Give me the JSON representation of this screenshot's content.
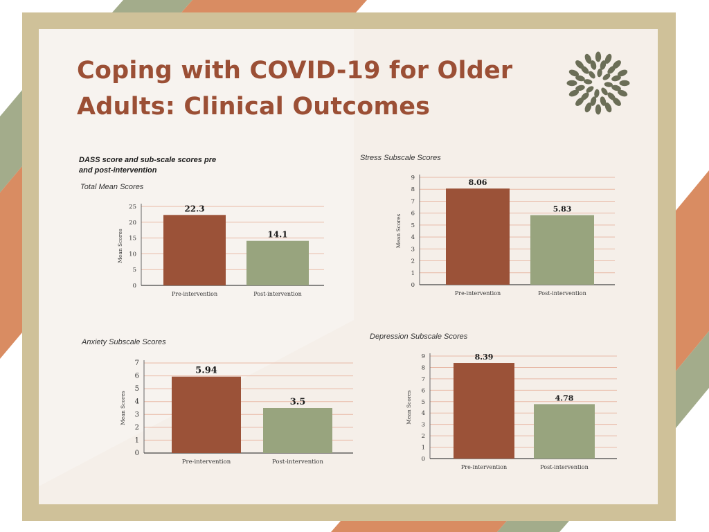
{
  "title": {
    "line1": "Coping with COVID-19 for Older",
    "line2": "Adults: Clinical Outcomes"
  },
  "logo": {
    "icon": "leaf-wreath-icon",
    "color": "#6b6e57"
  },
  "colors": {
    "pre": "#9b5238",
    "post": "#98a47e",
    "grid": "#e8b9a6",
    "frame": "#cfc199",
    "stripe_orange": "#d98c62",
    "stripe_green": "#a3ac8b"
  },
  "intro_heading": "DASS score and sub-scale scores pre and post-intervention",
  "chart_data": [
    {
      "id": "total",
      "type": "bar",
      "title": "Total Mean Scores",
      "ylabel": "Mean Scores",
      "categories": [
        "Pre-intervention",
        "Post-intervention"
      ],
      "values": [
        22.3,
        14.1
      ],
      "value_labels": [
        "22.3",
        "14.1"
      ],
      "ylim": [
        0,
        25
      ],
      "yticks": [
        0,
        5,
        10,
        15,
        20,
        25
      ],
      "grid": true
    },
    {
      "id": "stress",
      "type": "bar",
      "title": "Stress Subscale Scores",
      "ylabel": "Mean Scores",
      "categories": [
        "Pre-intervention",
        "Post-intervention"
      ],
      "values": [
        8.06,
        5.83
      ],
      "value_labels": [
        "8.06",
        "5.83"
      ],
      "ylim": [
        0,
        9
      ],
      "yticks": [
        0,
        1,
        2,
        3,
        4,
        5,
        6,
        7,
        8,
        9
      ],
      "grid": true
    },
    {
      "id": "anxiety",
      "type": "bar",
      "title": "Anxiety Subscale Scores",
      "ylabel": "Mean Scores",
      "categories": [
        "Pre-intervention",
        "Post-intervention"
      ],
      "values": [
        5.94,
        3.5
      ],
      "value_labels": [
        "5.94",
        "3.5"
      ],
      "ylim": [
        0,
        7
      ],
      "yticks": [
        0,
        1,
        2,
        3,
        4,
        5,
        6,
        7
      ],
      "grid": true
    },
    {
      "id": "depression",
      "type": "bar",
      "title": "Depression Subscale Scores",
      "ylabel": "Mean Scores",
      "categories": [
        "Pre-intervention",
        "Post-intervention"
      ],
      "values": [
        8.39,
        4.78
      ],
      "value_labels": [
        "8.39",
        "4.78"
      ],
      "ylim": [
        0,
        9
      ],
      "yticks": [
        0,
        1,
        2,
        3,
        4,
        5,
        6,
        7,
        8,
        9
      ],
      "grid": true
    }
  ]
}
